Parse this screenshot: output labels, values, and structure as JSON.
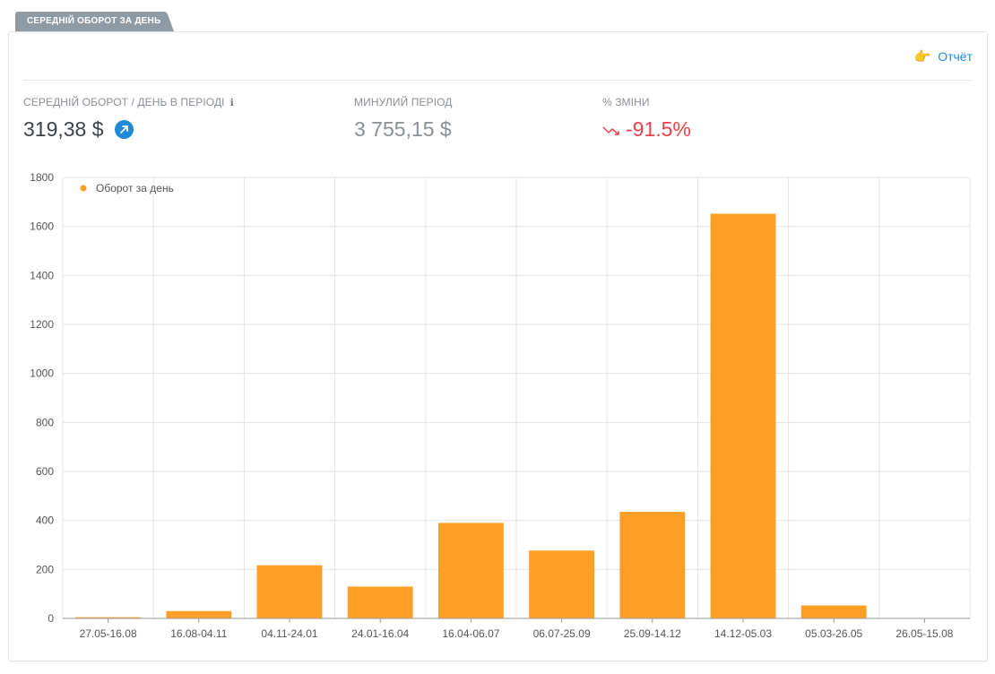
{
  "tab_label": "СЕРЕДНІЙ ОБОРОТ ЗА ДЕНЬ",
  "report_link": {
    "icon": "pointing-hand-icon",
    "label": "Отчёт"
  },
  "stats": {
    "current": {
      "label": "СЕРЕДНІЙ ОБОРОТ / ДЕНЬ В ПЕРІОДІ",
      "value": "319,38 $",
      "info_icon": "info-icon",
      "action_icon": "arrow-up-right-icon"
    },
    "previous": {
      "label": "МИНУЛИЙ ПЕРІОД",
      "value": "3 755,15 $"
    },
    "change": {
      "label": "% ЗМІНИ",
      "value": "-91.5%",
      "trend_icon": "trend-down-icon"
    }
  },
  "colors": {
    "bar": "#ff9f27",
    "accent": "#1f8bd8",
    "negative": "#e8414b"
  },
  "chart_data": {
    "type": "bar",
    "categories": [
      "27.05-16.08",
      "16.08-04.11",
      "04.11-24.01",
      "24.01-16.04",
      "16.04-06.07",
      "06.07-25.09",
      "25.09-14.12",
      "14.12-05.03",
      "05.03-26.05",
      "26.05-15.08"
    ],
    "series": [
      {
        "name": "Оборот за день",
        "values": [
          5,
          30,
          217,
          130,
          390,
          277,
          435,
          1652,
          53,
          0
        ]
      }
    ],
    "yticks": [
      "0",
      "200",
      "400",
      "600",
      "800",
      "1000",
      "1200",
      "1400",
      "1600",
      "1800"
    ],
    "ylim": [
      0,
      1800
    ],
    "grid": true,
    "legend_position": "top-left"
  }
}
